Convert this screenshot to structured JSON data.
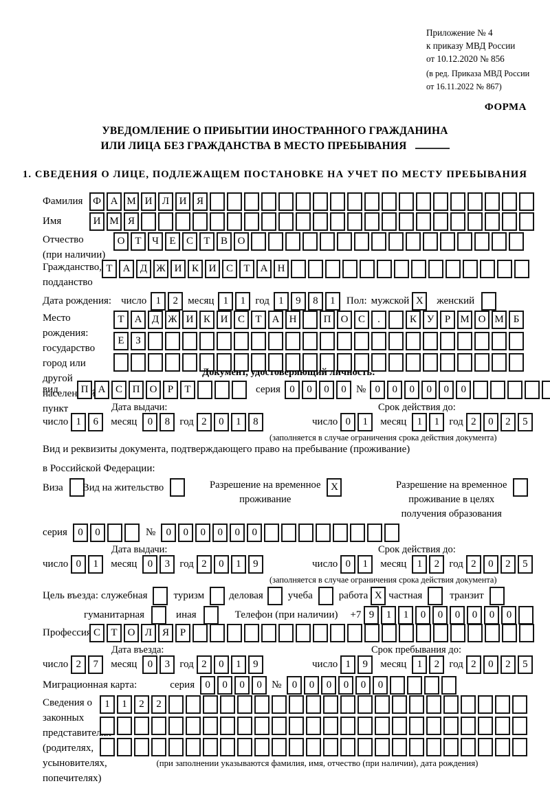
{
  "header": {
    "appendix_lines": [
      "Приложение № 4",
      "к приказу МВД России",
      "от 10.12.2020 № 856"
    ],
    "revision_lines": [
      "(в ред. Приказа МВД России",
      "от 16.11.2022 № 867)"
    ],
    "form_label": "ФОРМА"
  },
  "title": {
    "line1": "УВЕДОМЛЕНИЕ О ПРИБЫТИИ ИНОСТРАННОГО ГРАЖДАНИНА",
    "line2": "ИЛИ ЛИЦА БЕЗ ГРАЖДАНСТВА В МЕСТО ПРЕБЫВАНИЯ"
  },
  "section1_heading": "1. СВЕДЕНИЯ О ЛИЦЕ, ПОДЛЕЖАЩЕМ ПОСТАНОВКЕ НА УЧЕТ ПО МЕСТУ ПРЕБЫВАНИЯ",
  "date_labels": {
    "day": "число",
    "month": "месяц",
    "year": "год"
  },
  "surname": {
    "label": "Фамилия",
    "value": "ФАМИЛИЯ",
    "cells": 26
  },
  "given_name": {
    "label": "Имя",
    "value": "ИМЯ",
    "cells": 26
  },
  "patronymic": {
    "label_line1": "Отчество",
    "label_line2": "(при наличии)",
    "value": "ОТЧЕСТВО",
    "cells": 24
  },
  "citizenship": {
    "label_line1": "Гражданство,",
    "label_line2": "подданство",
    "value": "ТАДЖИКИСТАН",
    "cells": 25
  },
  "birth_date": {
    "label": "Дата рождения:",
    "day": {
      "value": "12",
      "cells": 2
    },
    "month": {
      "value": "11",
      "cells": 2
    },
    "year": {
      "value": "1981",
      "cells": 4
    },
    "gender_label": "Пол:",
    "male_label": "мужской",
    "male_checked": "X",
    "female_label": "женский",
    "female_checked": ""
  },
  "birth_place": {
    "label_lines": [
      "Место рождения:",
      "государство",
      "город или другой",
      "населенный пункт"
    ],
    "row1": {
      "value": "ТАДЖИКИСТАН ПОС. КУРМОМБ",
      "cells": 24
    },
    "row2": {
      "value": "ЕЗ",
      "cells": 24
    },
    "row3": {
      "value": "",
      "cells": 24
    }
  },
  "identity_doc": {
    "heading": "Документ, удостоверяющий личность:",
    "kind_label": "вид",
    "kind": {
      "value": "ПАСПОРТ",
      "cells": 10
    },
    "series_label": "серия",
    "series": {
      "value": "0000",
      "cells": 4
    },
    "number_label": "№",
    "number": {
      "value": "000000",
      "cells": 11
    },
    "issue_heading": "Дата выдачи:",
    "issue_day": {
      "value": "16",
      "cells": 2
    },
    "issue_month": {
      "value": "08",
      "cells": 2
    },
    "issue_year": {
      "value": "2018",
      "cells": 4
    },
    "valid_heading": "Срок действия до:",
    "valid_day": {
      "value": "01",
      "cells": 2
    },
    "valid_month": {
      "value": "11",
      "cells": 2
    },
    "valid_year": {
      "value": "2025",
      "cells": 4
    },
    "valid_note": "(заполняется в случае ограничения срока действия документа)"
  },
  "residence_doc": {
    "intro_line1": "Вид и реквизиты документа, подтверждающего право на пребывание (проживание)",
    "intro_line2": "в Российской Федерации:",
    "visa": {
      "label": "Виза",
      "checked": ""
    },
    "residence_permit": {
      "label": "Вид на жительство",
      "checked": ""
    },
    "temp_residence": {
      "label_lines": [
        "Разрешение на временное",
        "проживание"
      ],
      "checked": "X"
    },
    "temp_residence_edu": {
      "label_lines": [
        "Разрешение на временное",
        "проживание в целях",
        "получения образования"
      ],
      "checked": ""
    },
    "series_label": "серия",
    "series": {
      "value": "00",
      "cells": 4
    },
    "number_label": "№",
    "number": {
      "value": "000000",
      "cells": 14
    },
    "issue_heading": "Дата выдачи:",
    "issue_day": {
      "value": "01",
      "cells": 2
    },
    "issue_month": {
      "value": "03",
      "cells": 2
    },
    "issue_year": {
      "value": "2019",
      "cells": 4
    },
    "valid_heading": "Срок действия до:",
    "valid_day": {
      "value": "01",
      "cells": 2
    },
    "valid_month": {
      "value": "12",
      "cells": 2
    },
    "valid_year": {
      "value": "2025",
      "cells": 4
    },
    "valid_note": "(заполняется в случае ограничения срока действия документа)"
  },
  "entry_purpose": {
    "label": "Цель въезда:",
    "official": {
      "label": "служебная",
      "checked": ""
    },
    "tourism": {
      "label": "туризм",
      "checked": ""
    },
    "business": {
      "label": "деловая",
      "checked": ""
    },
    "study": {
      "label": "учеба",
      "checked": ""
    },
    "work": {
      "label": "работа",
      "checked": "X"
    },
    "private": {
      "label": "частная",
      "checked": ""
    },
    "transit": {
      "label": "транзит",
      "checked": ""
    },
    "humanitarian": {
      "label": "гуманитарная",
      "checked": ""
    },
    "other": {
      "label": "иная",
      "checked": ""
    }
  },
  "phone": {
    "label": "Телефон (при наличии)",
    "prefix": "+7",
    "digits": {
      "value": "911000000",
      "cells": 10
    }
  },
  "profession": {
    "label": "Профессия",
    "value": "СТОЛЯР",
    "cells": 26
  },
  "entry_date": {
    "heading": "Дата въезда:",
    "day": {
      "value": "27",
      "cells": 2
    },
    "month": {
      "value": "03",
      "cells": 2
    },
    "year": {
      "value": "2019",
      "cells": 4
    }
  },
  "stay_until": {
    "heading": "Срок пребывания до:",
    "day": {
      "value": "19",
      "cells": 2
    },
    "month": {
      "value": "12",
      "cells": 2
    },
    "year": {
      "value": "2025",
      "cells": 4
    }
  },
  "migration_card": {
    "label": "Миграционная карта:",
    "series_label": "серия",
    "series": {
      "value": "0000",
      "cells": 4
    },
    "number_label": "№",
    "number": {
      "value": "000000",
      "cells": 10
    }
  },
  "legal_reps": {
    "label_lines": [
      "Сведения о",
      "законных",
      "представителях",
      "(родителях,",
      "усыновителях,",
      "попечителях)"
    ],
    "row1": {
      "value": "1122",
      "cells": 25
    },
    "row2": {
      "value": "",
      "cells": 25
    },
    "row3": {
      "value": "",
      "cells": 25
    },
    "note": "(при заполнении указываются фамилия, имя, отчество (при наличии), дата рождения)"
  }
}
